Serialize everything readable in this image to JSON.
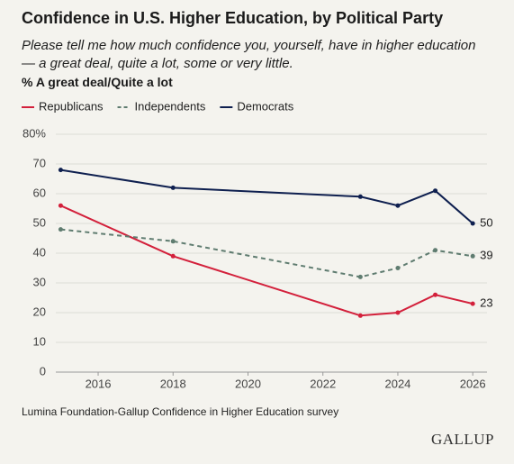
{
  "chart_data": {
    "type": "line",
    "title": "Confidence in U.S. Higher Education, by Political Party",
    "subtitle": "Please tell me how much confidence you, yourself, have in higher education — a great deal, quite a lot, some or very little.",
    "y_label": "% A great deal/Quite a lot",
    "source": "Lumina Foundation-Gallup Confidence in Higher Education survey",
    "logo": "GALLUP",
    "x": [
      2015,
      2018,
      2023,
      2024,
      2025,
      2026
    ],
    "series": [
      {
        "name": "Republicans",
        "color": "#d3203b",
        "dashed": false,
        "values": [
          56,
          39,
          19,
          20,
          26,
          23
        ]
      },
      {
        "name": "Independents",
        "color": "#5f7c70",
        "dashed": true,
        "values": [
          48,
          44,
          32,
          35,
          41,
          39
        ]
      },
      {
        "name": "Democrats",
        "color": "#0e1f4f",
        "dashed": false,
        "values": [
          68,
          62,
          59,
          56,
          61,
          50
        ]
      }
    ],
    "xlim": [
      2014.87,
      2026.38
    ],
    "xticks": [
      2016,
      2018,
      2020,
      2022,
      2024,
      2026
    ],
    "ylim": [
      0,
      80
    ],
    "yticks": [
      0,
      10,
      20,
      30,
      40,
      50,
      60,
      70,
      {
        "value": 80,
        "label": "80%"
      }
    ],
    "grid": true,
    "end_labels": true
  }
}
